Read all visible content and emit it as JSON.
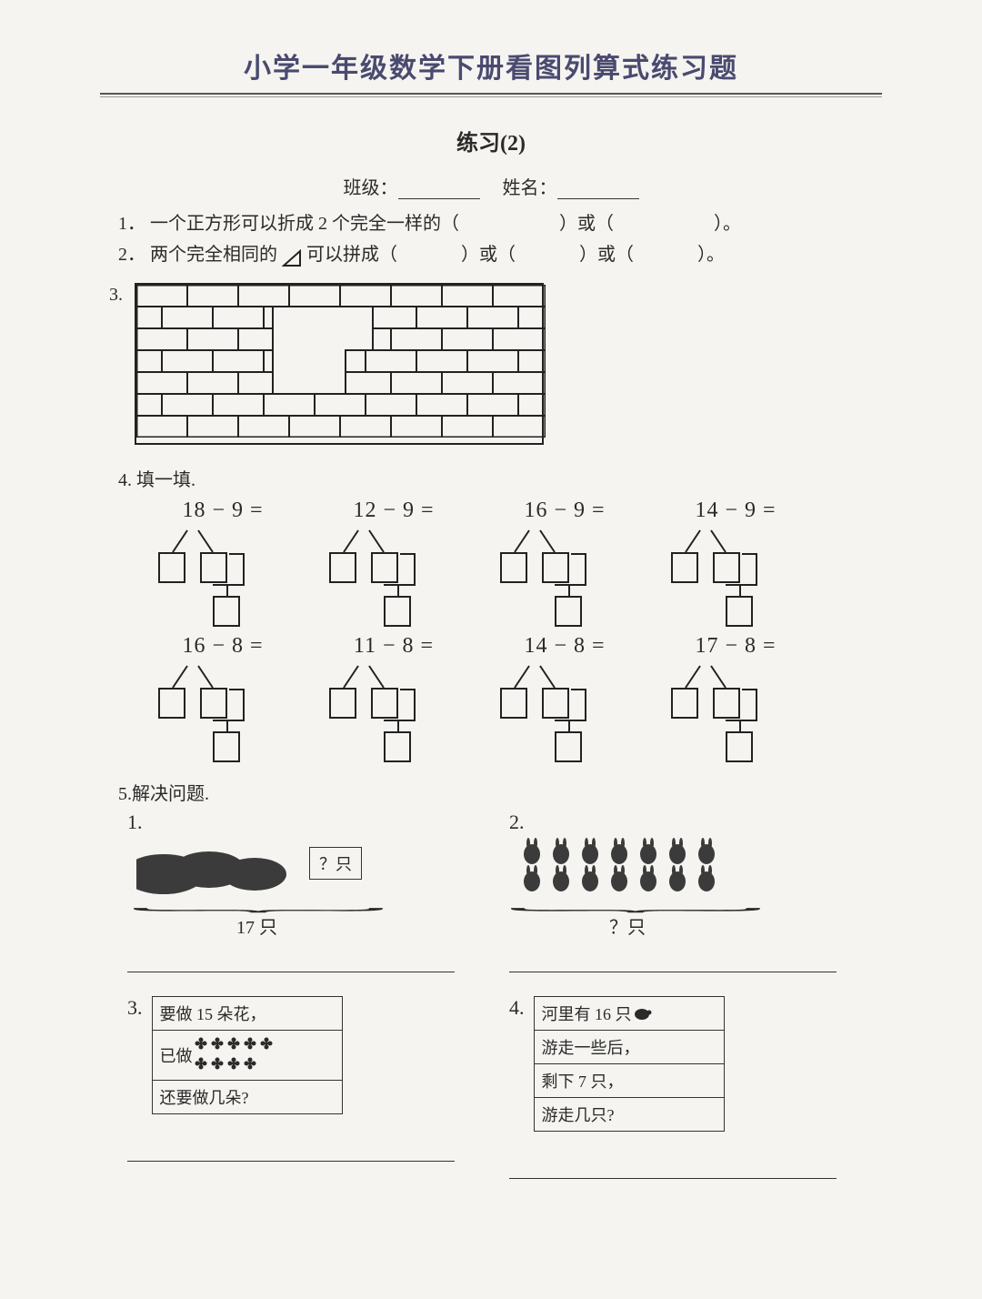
{
  "header": {
    "title": "小学一年级数学下册看图列算式练习题",
    "subtitle": "练习(2)",
    "class_label": "班级：",
    "name_label": "姓名："
  },
  "q1": {
    "num": "1．",
    "text_a": "一个正方形可以折成 2 个完全一样的（",
    "text_b": "）或（",
    "text_c": "）。"
  },
  "q2": {
    "num": "2．",
    "text_a": "两个完全相同的",
    "text_b": "可以拼成（",
    "text_c": "）或（",
    "text_d": "）或（",
    "text_e": "）。"
  },
  "q3": {
    "num": "3."
  },
  "q4": {
    "label": "4. 填一填.",
    "row1": [
      "18 − 9 =",
      "12 − 9 =",
      "16 − 9 =",
      "14 − 9 ="
    ],
    "row2": [
      "16 − 8 =",
      "11 − 8 =",
      "14 − 8 =",
      "17 − 8 ="
    ]
  },
  "q5": {
    "label": "5.解决问题.",
    "p1": {
      "num": "1.",
      "qbox": "？只",
      "total": "17 只"
    },
    "p2": {
      "num": "2.",
      "total": "？只"
    },
    "p3": {
      "num": "3.",
      "r1": "要做 15 朵花，",
      "r2": "已做",
      "r3": "还要做几朵?"
    },
    "p4": {
      "num": "4.",
      "r1": "河里有 16 只",
      "r2": "游走一些后，",
      "r3": "剩下 7 只，",
      "r4": "游走几只?"
    }
  },
  "style": {
    "title_color": "#4a4a70",
    "border_color": "#222222",
    "bg": "#f5f4f0"
  }
}
